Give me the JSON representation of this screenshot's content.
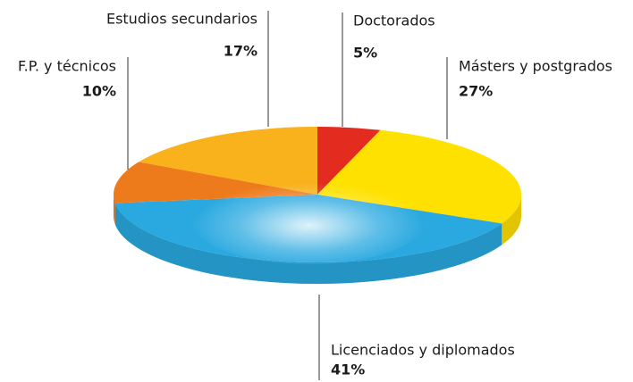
{
  "chart_data": {
    "type": "pie",
    "categories": [
      "Doctorados",
      "Másters y postgrados",
      "Licenciados y diplomados",
      "F.P. y técnicos",
      "Estudios secundarios"
    ],
    "values": [
      5,
      27,
      41,
      10,
      17
    ],
    "value_labels": [
      "5%",
      "27%",
      "41%",
      "10%",
      "17%"
    ],
    "colors": [
      "#e42b1f",
      "#ffe100",
      "#2aa9e0",
      "#ee7b1b",
      "#f9b11c"
    ]
  }
}
